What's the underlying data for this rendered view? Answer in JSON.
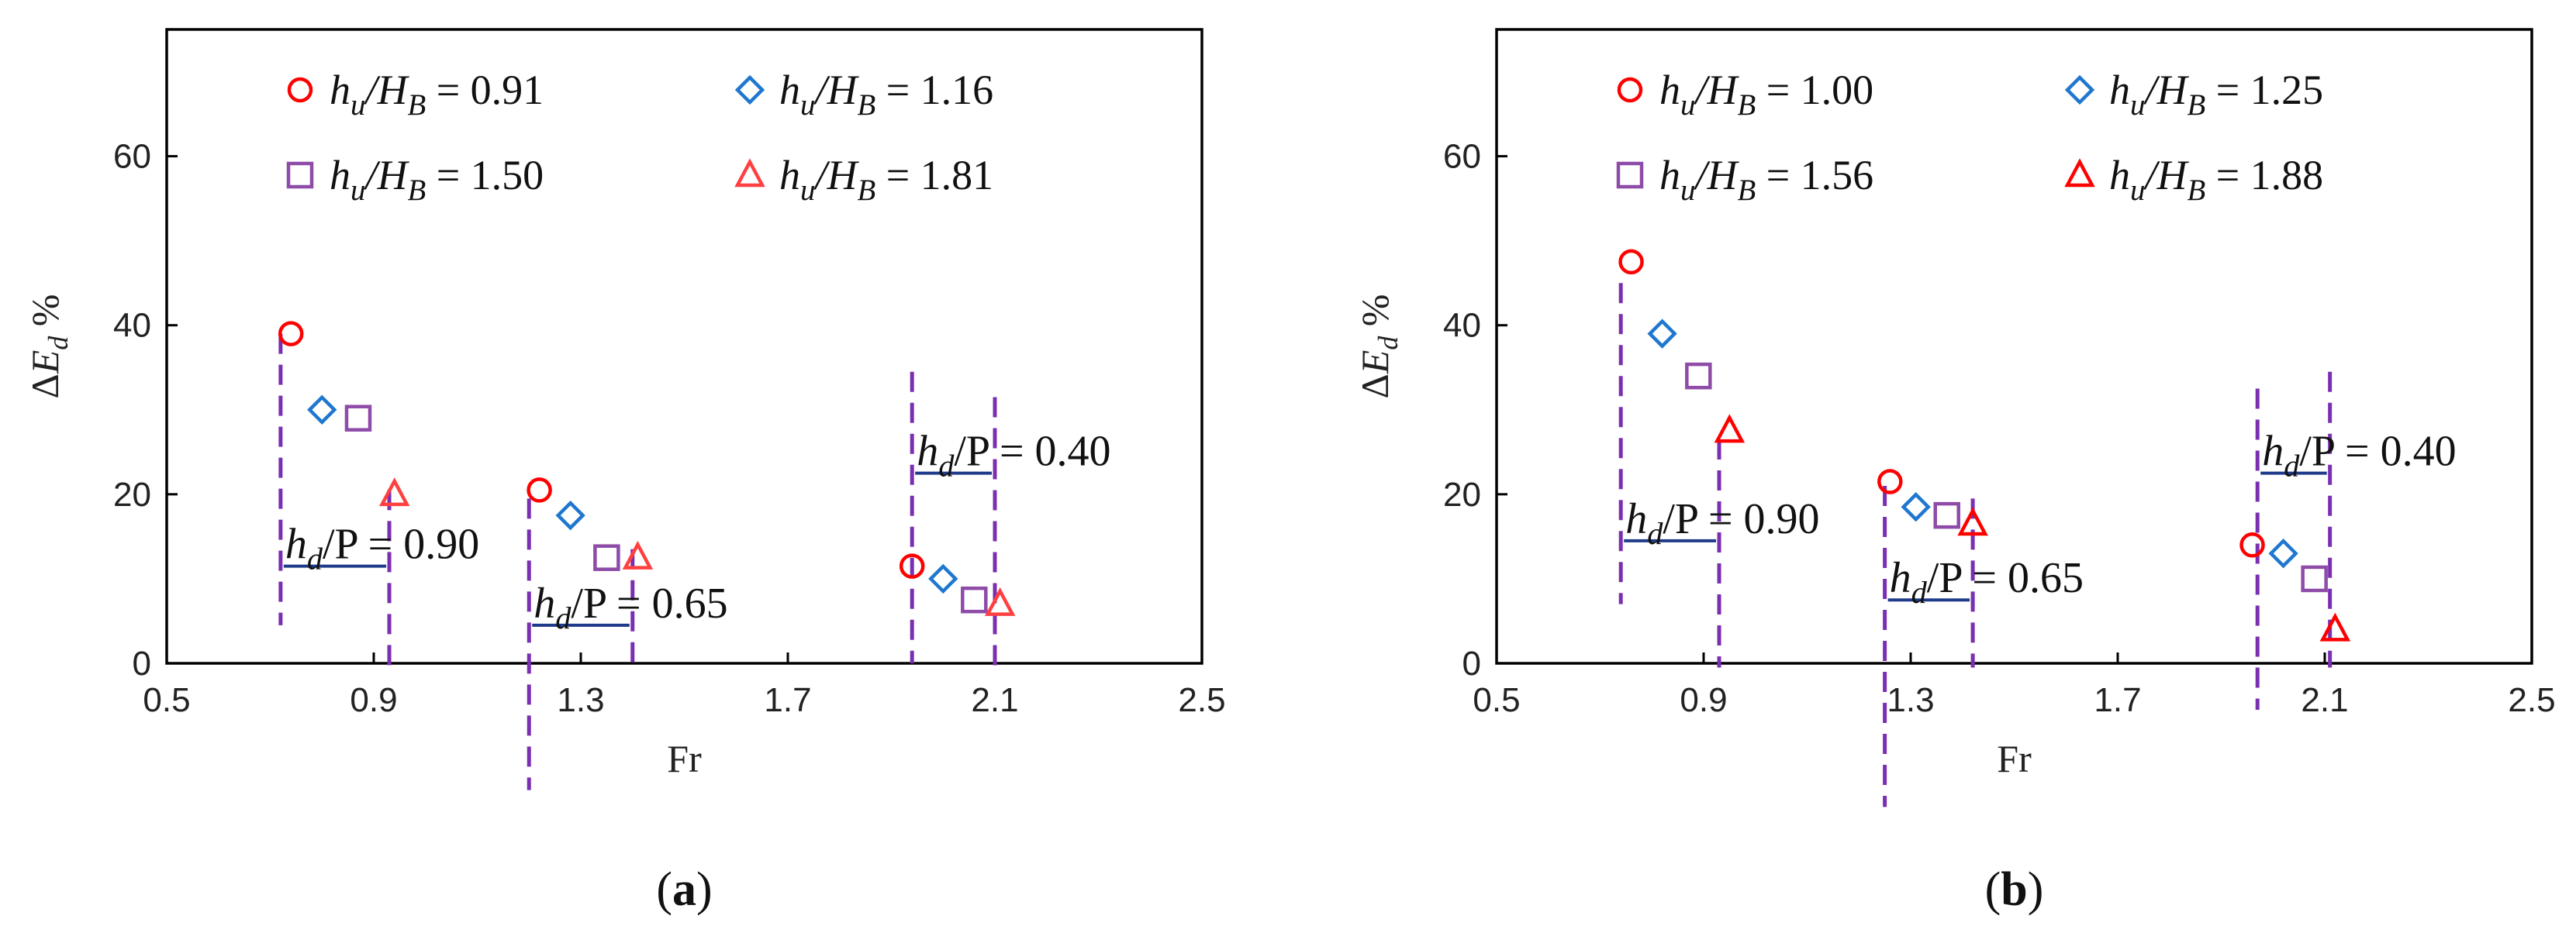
{
  "chart_data": [
    {
      "type": "scatter",
      "panel_label": "(a)",
      "panel_letter": "a",
      "xlabel": "Fr",
      "ylabel": "ΔE_d %",
      "xlim": [
        0.5,
        2.5
      ],
      "ylim": [
        0,
        75
      ],
      "xticks": [
        "0.5",
        "0.9",
        "1.3",
        "1.7",
        "2.1",
        "2.5"
      ],
      "yticks": [
        "0",
        "20",
        "40",
        "60"
      ],
      "grid": false,
      "legend_position": "top",
      "series": [
        {
          "name": "h_u/H_B = 0.91",
          "marker": "circle",
          "color": "#ff0000",
          "x": [
            0.74,
            1.22,
            1.94
          ],
          "y": [
            39.0,
            20.5,
            11.5
          ]
        },
        {
          "name": "h_u/H_B = 1.16",
          "marker": "diamond",
          "color": "#1f77d0",
          "x": [
            0.8,
            1.28,
            2.0
          ],
          "y": [
            30.0,
            17.5,
            10.0
          ]
        },
        {
          "name": "h_u/H_B = 1.50",
          "marker": "square",
          "color": "#8e4ba8",
          "x": [
            0.87,
            1.35,
            2.06
          ],
          "y": [
            29.0,
            12.5,
            7.5
          ]
        },
        {
          "name": "h_u/H_B = 1.81",
          "marker": "triangle",
          "color": "#ff4040",
          "x": [
            0.94,
            1.41,
            2.11
          ],
          "y": [
            20.0,
            12.5,
            7.0
          ]
        }
      ],
      "annotations": [
        {
          "text": "h_d/P = 0.90",
          "x0": 0.72,
          "x1": 0.93,
          "ytop": 39,
          "ylevel": 11.5
        },
        {
          "text": "h_d/P = 0.65",
          "x0": 1.2,
          "x1": 1.4,
          "ytop": 19.5,
          "ylevel": 4.5
        },
        {
          "text": "h_d/P = 0.40",
          "x0": 1.94,
          "x1": 2.1,
          "ytop": 34.5,
          "ylevel": 22.5
        }
      ]
    },
    {
      "type": "scatter",
      "panel_label": "(b)",
      "panel_letter": "b",
      "xlabel": "Fr",
      "ylabel": "ΔE_d %",
      "xlim": [
        0.5,
        2.5
      ],
      "ylim": [
        0,
        75
      ],
      "xticks": [
        "0.5",
        "0.9",
        "1.3",
        "1.7",
        "2.1",
        "2.5"
      ],
      "yticks": [
        "0",
        "20",
        "40",
        "60"
      ],
      "grid": false,
      "legend_position": "top",
      "series": [
        {
          "name": "h_u/H_B = 1.00",
          "marker": "circle",
          "color": "#ff0000",
          "x": [
            0.76,
            1.26,
            1.96
          ],
          "y": [
            47.5,
            21.5,
            14.0
          ]
        },
        {
          "name": "h_u/H_B = 1.25",
          "marker": "diamond",
          "color": "#1f77d0",
          "x": [
            0.82,
            1.31,
            2.02
          ],
          "y": [
            39.0,
            18.5,
            13.0
          ]
        },
        {
          "name": "h_u/H_B = 1.56",
          "marker": "square",
          "color": "#8e4ba8",
          "x": [
            0.89,
            1.37,
            2.08
          ],
          "y": [
            34.0,
            17.5,
            10.0
          ]
        },
        {
          "name": "h_u/H_B = 1.88",
          "marker": "triangle",
          "color": "#ff0000",
          "x": [
            0.95,
            1.42,
            2.12
          ],
          "y": [
            27.5,
            16.5,
            4.0
          ]
        }
      ],
      "annotations": [
        {
          "text": "h_d/P = 0.90",
          "x0": 0.74,
          "x1": 0.93,
          "ytop": 45,
          "ylevel": 14.5
        },
        {
          "text": "h_d/P = 0.65",
          "x0": 1.25,
          "x1": 1.42,
          "ytop": 21,
          "ylevel": 7.5
        },
        {
          "text": "h_d/P = 0.40",
          "x0": 1.97,
          "x1": 2.11,
          "ytop": 32.5,
          "ylevel": 22.5
        }
      ]
    }
  ]
}
